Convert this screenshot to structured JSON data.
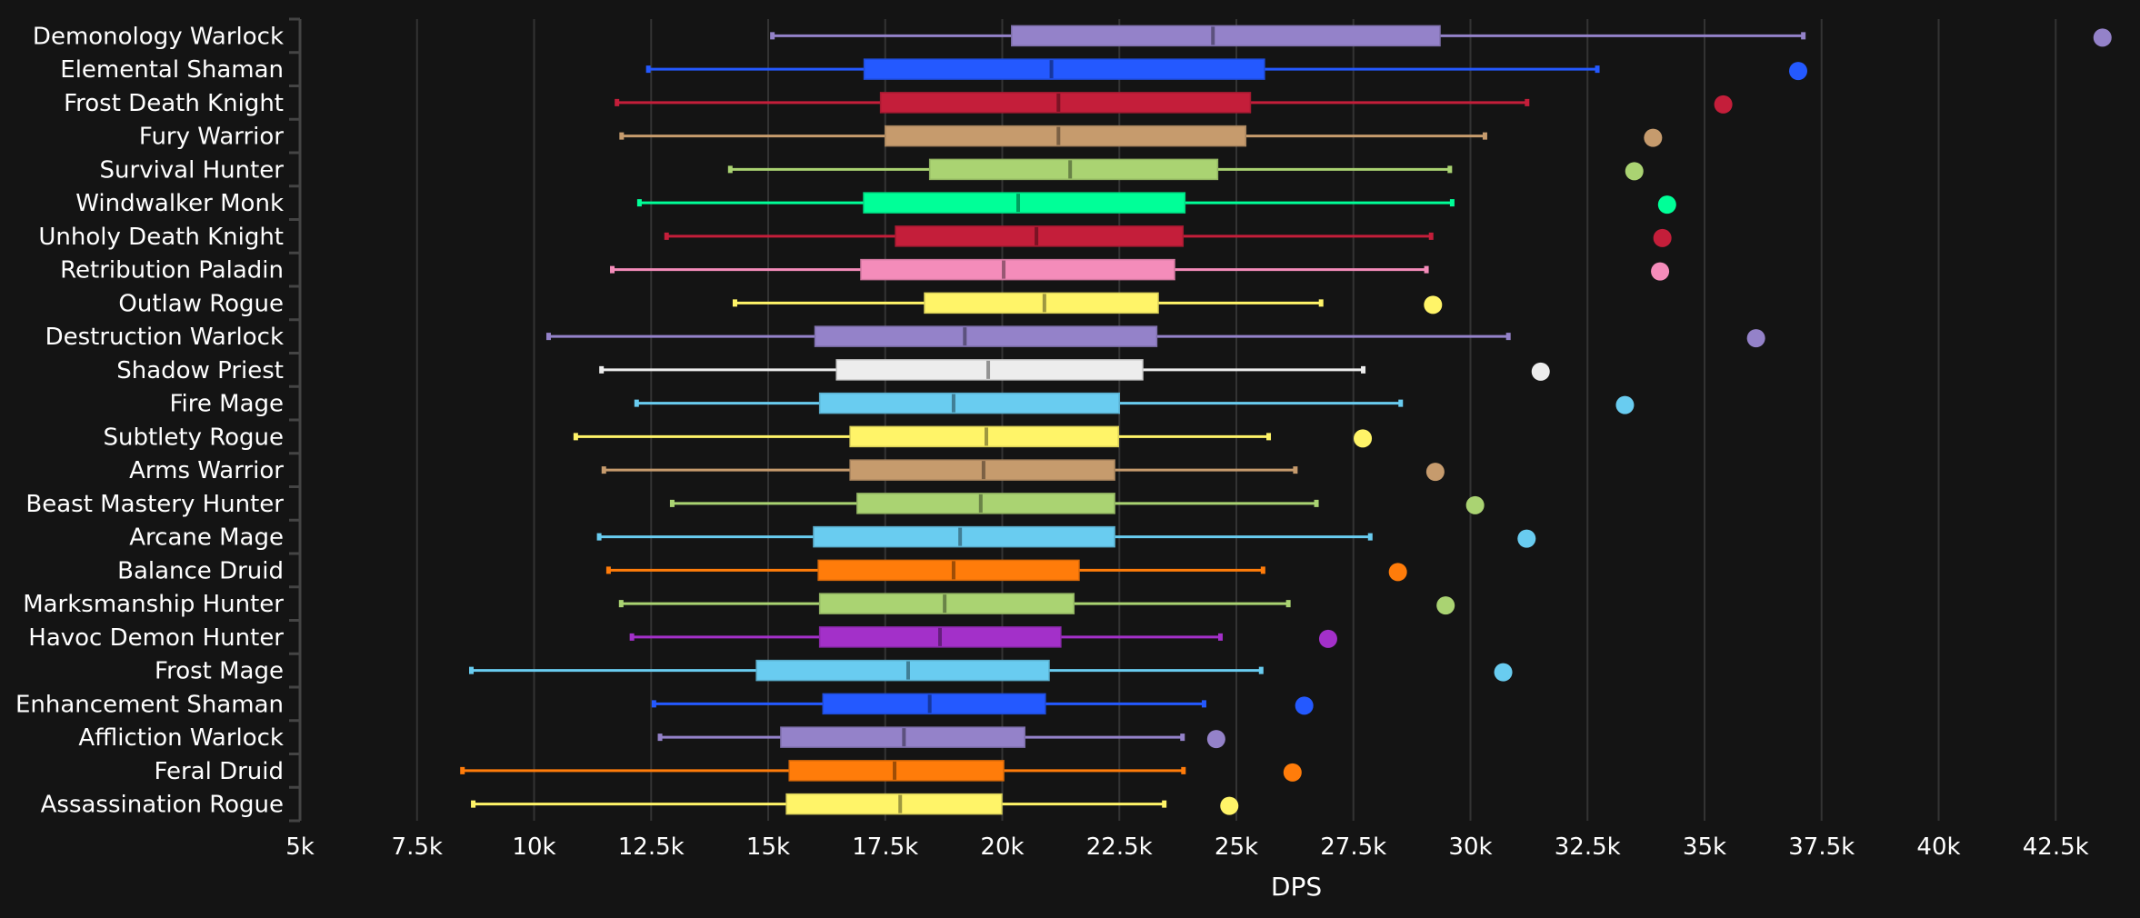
{
  "chart_data": {
    "type": "boxplot",
    "title": "",
    "xlabel": "DPS",
    "ylabel": "",
    "xlim": [
      5000,
      44000
    ],
    "grid": true,
    "orientation": "horizontal",
    "x_ticks": [
      5000,
      7500,
      10000,
      12500,
      15000,
      17500,
      20000,
      22500,
      25000,
      27500,
      30000,
      32500,
      35000,
      37500,
      40000,
      42500
    ],
    "x_tick_labels": [
      "5k",
      "7.5k",
      "10k",
      "12.5k",
      "15k",
      "17.5k",
      "20k",
      "22.5k",
      "25k",
      "27.5k",
      "30k",
      "32.5k",
      "35k",
      "37.5k",
      "40k",
      "42.5k"
    ],
    "series": [
      {
        "name": "Demonology Warlock",
        "color": "#9482C9",
        "min": 15100,
        "q1": 20200,
        "median": 24500,
        "q3": 29350,
        "max": 37100,
        "outlier": 43500
      },
      {
        "name": "Elemental Shaman",
        "color": "#2459FF",
        "min": 12450,
        "q1": 17050,
        "median": 21050,
        "q3": 25600,
        "max": 32700,
        "outlier": 37000
      },
      {
        "name": "Frost Death Knight",
        "color": "#C41E3A",
        "min": 11780,
        "q1": 17400,
        "median": 21200,
        "q3": 25300,
        "max": 31200,
        "outlier": 35400
      },
      {
        "name": "Fury Warrior",
        "color": "#C69B6D",
        "min": 11880,
        "q1": 17500,
        "median": 21200,
        "q3": 25200,
        "max": 30300,
        "outlier": 33900
      },
      {
        "name": "Survival Hunter",
        "color": "#AAD372",
        "min": 14200,
        "q1": 18450,
        "median": 21450,
        "q3": 24600,
        "max": 29550,
        "outlier": 33500
      },
      {
        "name": "Windwalker Monk",
        "color": "#00FF98",
        "min": 12260,
        "q1": 17040,
        "median": 20340,
        "q3": 23900,
        "max": 29600,
        "outlier": 34200
      },
      {
        "name": "Unholy Death Knight",
        "color": "#C41E3A",
        "min": 12840,
        "q1": 17720,
        "median": 20730,
        "q3": 23860,
        "max": 29150,
        "outlier": 34100
      },
      {
        "name": "Retribution Paladin",
        "color": "#F48CBA",
        "min": 11680,
        "q1": 16980,
        "median": 20030,
        "q3": 23680,
        "max": 29050,
        "outlier": 34050
      },
      {
        "name": "Outlaw Rogue",
        "color": "#FFF468",
        "min": 14300,
        "q1": 18340,
        "median": 20900,
        "q3": 23330,
        "max": 26800,
        "outlier": 29200
      },
      {
        "name": "Destruction Warlock",
        "color": "#9482C9",
        "min": 10320,
        "q1": 16000,
        "median": 19200,
        "q3": 23300,
        "max": 30800,
        "outlier": 36100
      },
      {
        "name": "Shadow Priest",
        "color": "#EDEDED",
        "min": 11450,
        "q1": 16460,
        "median": 19700,
        "q3": 23000,
        "max": 27700,
        "outlier": 31500
      },
      {
        "name": "Fire Mage",
        "color": "#69CCF0",
        "min": 12200,
        "q1": 16100,
        "median": 18960,
        "q3": 22500,
        "max": 28500,
        "outlier": 33300
      },
      {
        "name": "Subtlety Rogue",
        "color": "#FFF468",
        "min": 10900,
        "q1": 16750,
        "median": 19660,
        "q3": 22480,
        "max": 25680,
        "outlier": 27700
      },
      {
        "name": "Arms Warrior",
        "color": "#C69B6D",
        "min": 11500,
        "q1": 16750,
        "median": 19600,
        "q3": 22400,
        "max": 26250,
        "outlier": 29250
      },
      {
        "name": "Beast Mastery Hunter",
        "color": "#AAD372",
        "min": 12960,
        "q1": 16900,
        "median": 19540,
        "q3": 22400,
        "max": 26700,
        "outlier": 30100
      },
      {
        "name": "Arcane Mage",
        "color": "#69CCF0",
        "min": 11400,
        "q1": 15970,
        "median": 19100,
        "q3": 22400,
        "max": 27850,
        "outlier": 31200
      },
      {
        "name": "Balance Druid",
        "color": "#FF7C0A",
        "min": 11600,
        "q1": 16070,
        "median": 18960,
        "q3": 21640,
        "max": 25560,
        "outlier": 28450
      },
      {
        "name": "Marksmanship Hunter",
        "color": "#AAD372",
        "min": 11870,
        "q1": 16100,
        "median": 18770,
        "q3": 21530,
        "max": 26100,
        "outlier": 29470
      },
      {
        "name": "Havoc Demon Hunter",
        "color": "#A330C9",
        "min": 12100,
        "q1": 16100,
        "median": 18670,
        "q3": 21250,
        "max": 24650,
        "outlier": 26960
      },
      {
        "name": "Frost Mage",
        "color": "#69CCF0",
        "min": 8670,
        "q1": 14750,
        "median": 17990,
        "q3": 21000,
        "max": 25520,
        "outlier": 30700
      },
      {
        "name": "Enhancement Shaman",
        "color": "#2459FF",
        "min": 12570,
        "q1": 16170,
        "median": 18450,
        "q3": 20920,
        "max": 24300,
        "outlier": 26450
      },
      {
        "name": "Affliction Warlock",
        "color": "#9482C9",
        "min": 12700,
        "q1": 15270,
        "median": 17900,
        "q3": 20480,
        "max": 23840,
        "outlier": 24570
      },
      {
        "name": "Feral Druid",
        "color": "#FF7C0A",
        "min": 8480,
        "q1": 15450,
        "median": 17700,
        "q3": 20030,
        "max": 23860,
        "outlier": 26200
      },
      {
        "name": "Assassination Rogue",
        "color": "#FFF468",
        "min": 8710,
        "q1": 15390,
        "median": 17820,
        "q3": 19990,
        "max": 23450,
        "outlier": 24850
      }
    ]
  },
  "theme": {
    "background": "#141414",
    "grid_color": "#333333",
    "axis_color": "#444444",
    "text_color": "#ffffff"
  }
}
